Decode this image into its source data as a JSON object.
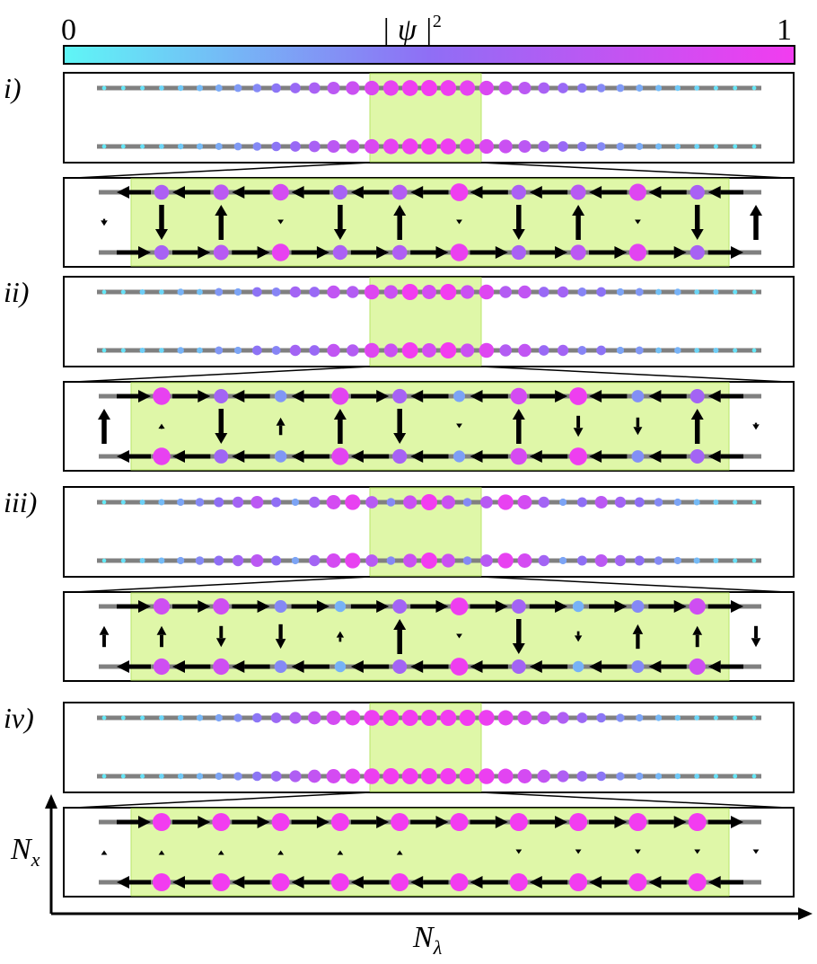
{
  "colorbar": {
    "min_label": "0",
    "max_label": "1",
    "title": "| ψ |",
    "title_exponent": "2",
    "color_low": "#5ff6f6",
    "color_mid": "#8f6ef5",
    "color_high": "#f23cf0"
  },
  "axes": {
    "y_label_main": "N",
    "y_label_sub": "x",
    "x_label_main": "N",
    "x_label_sub": "λ"
  },
  "colors": {
    "highlight": "#dff7a8",
    "highlight_border": "#b8e66a",
    "rail": "#808080",
    "arrow": "#000000"
  },
  "panels": [
    {
      "label": "i)",
      "overview": [
        0.05,
        0.06,
        0.08,
        0.12,
        0.17,
        0.22,
        0.28,
        0.34,
        0.4,
        0.47,
        0.55,
        0.63,
        0.72,
        0.8,
        0.88,
        0.94,
        0.98,
        1.0,
        0.98,
        0.94,
        0.88,
        0.8,
        0.72,
        0.63,
        0.55,
        0.47,
        0.4,
        0.34,
        0.28,
        0.22,
        0.17,
        0.12,
        0.08,
        0.06,
        0.05
      ],
      "sites_top": [
        0.65,
        0.72,
        0.85,
        0.62,
        0.68,
        0.98,
        0.64,
        0.7,
        0.9,
        0.63
      ],
      "sites_bottom": [
        0.62,
        0.7,
        0.95,
        0.64,
        0.66,
        0.96,
        0.63,
        0.72,
        0.92,
        0.62
      ],
      "arrows_h_top": [
        -1,
        -1,
        -1,
        -1,
        -1,
        -1,
        -1,
        -1,
        -1,
        -1,
        -1
      ],
      "arrows_h_bottom": [
        1,
        1,
        1,
        1,
        1,
        1,
        1,
        1,
        1,
        1,
        1
      ],
      "arrows_v": [
        -1,
        1,
        -0.1,
        -1,
        1,
        -0.1,
        -1,
        1,
        -0.1,
        -1
      ],
      "edge_v": [
        -0.2,
        1
      ]
    },
    {
      "label": "ii)",
      "overview": [
        0.05,
        0.08,
        0.15,
        0.12,
        0.25,
        0.2,
        0.35,
        0.3,
        0.48,
        0.42,
        0.6,
        0.55,
        0.75,
        0.68,
        0.9,
        0.8,
        1.0,
        0.85,
        1.0,
        0.8,
        0.9,
        0.68,
        0.75,
        0.55,
        0.6,
        0.42,
        0.48,
        0.3,
        0.35,
        0.2,
        0.25,
        0.12,
        0.15,
        0.08,
        0.05
      ],
      "sites_top": [
        0.95,
        0.6,
        0.35,
        0.92,
        0.62,
        0.3,
        0.85,
        0.98,
        0.38,
        0.6
      ],
      "sites_bottom": [
        0.95,
        0.58,
        0.35,
        0.92,
        0.62,
        0.32,
        0.86,
        0.98,
        0.38,
        0.6
      ],
      "arrows_h_top": [
        1,
        1,
        -1,
        -1,
        1,
        -1,
        -1,
        1,
        -1,
        -1,
        -1
      ],
      "arrows_h_bottom": [
        -1,
        -1,
        -1,
        -1,
        -1,
        -1,
        -1,
        -1,
        -1,
        -1,
        -1
      ],
      "arrows_v": [
        0.15,
        -1,
        0.5,
        1,
        -1,
        -0.1,
        1,
        -0.6,
        -0.5,
        1
      ],
      "edge_v": [
        1,
        -0.2
      ]
    },
    {
      "label": "iii)",
      "overview": [
        0.04,
        0.08,
        0.14,
        0.22,
        0.3,
        0.4,
        0.5,
        0.6,
        0.72,
        0.5,
        0.3,
        0.6,
        0.85,
        0.95,
        0.7,
        0.4,
        0.8,
        1.0,
        0.8,
        0.4,
        0.7,
        0.95,
        0.85,
        0.6,
        0.3,
        0.5,
        0.72,
        0.6,
        0.5,
        0.4,
        0.3,
        0.22,
        0.14,
        0.08,
        0.04
      ],
      "sites_top": [
        0.82,
        0.82,
        0.4,
        0.25,
        0.6,
        0.98,
        0.6,
        0.25,
        0.4,
        0.82
      ],
      "sites_bottom": [
        0.82,
        0.82,
        0.4,
        0.25,
        0.6,
        0.98,
        0.6,
        0.25,
        0.4,
        0.82
      ],
      "arrows_h_top": [
        1,
        1,
        1,
        1,
        1,
        1,
        1,
        1,
        1,
        1,
        1
      ],
      "arrows_h_bottom": [
        -1,
        -1,
        -1,
        -1,
        -1,
        -1,
        -1,
        -1,
        -1,
        -1,
        -1
      ],
      "arrows_v": [
        0.6,
        -0.6,
        -0.7,
        0.3,
        1,
        -0.1,
        -1,
        -0.3,
        0.7,
        0.6
      ],
      "edge_v": [
        0.6,
        -0.6
      ]
    },
    {
      "label": "iv)",
      "overview": [
        0.05,
        0.06,
        0.08,
        0.12,
        0.17,
        0.23,
        0.3,
        0.38,
        0.47,
        0.56,
        0.66,
        0.76,
        0.85,
        0.92,
        0.97,
        1.0,
        1.0,
        1.0,
        1.0,
        1.0,
        0.97,
        0.92,
        0.85,
        0.76,
        0.66,
        0.56,
        0.47,
        0.38,
        0.3,
        0.23,
        0.17,
        0.12,
        0.08,
        0.06,
        0.05
      ],
      "sites_top": [
        1.0,
        1.0,
        1.0,
        1.0,
        1.0,
        1.0,
        1.0,
        1.0,
        1.0,
        1.0
      ],
      "sites_bottom": [
        1.0,
        1.0,
        1.0,
        1.0,
        1.0,
        1.0,
        1.0,
        1.0,
        1.0,
        1.0
      ],
      "arrows_h_top": [
        1,
        1,
        1,
        1,
        1,
        1,
        1,
        1,
        1,
        1,
        1
      ],
      "arrows_h_bottom": [
        -1,
        -1,
        -1,
        -1,
        -1,
        -1,
        -1,
        -1,
        -1,
        -1,
        -1
      ],
      "arrows_v": [
        0.1,
        0.1,
        0.1,
        0.1,
        0.1,
        0,
        -0.1,
        -0.1,
        -0.1,
        -0.1
      ],
      "edge_v": [
        0.1,
        -0.1
      ]
    }
  ]
}
